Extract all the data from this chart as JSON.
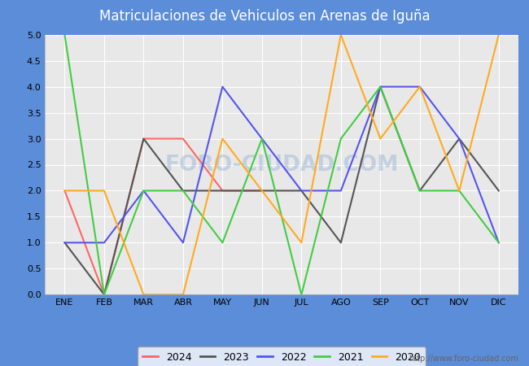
{
  "title": "Matriculaciones de Vehiculos en Arenas de Iguña",
  "title_color": "#ffffff",
  "header_bg": "#5b8dd9",
  "months": [
    "ENE",
    "FEB",
    "MAR",
    "ABR",
    "MAY",
    "JUN",
    "JUL",
    "AGO",
    "SEP",
    "OCT",
    "NOV",
    "DIC"
  ],
  "series_order": [
    "2024",
    "2023",
    "2022",
    "2021",
    "2020"
  ],
  "series": {
    "2024": {
      "color": "#ff6666",
      "data": [
        2,
        0,
        3,
        3,
        2,
        2,
        null,
        null,
        null,
        null,
        null,
        null
      ]
    },
    "2023": {
      "color": "#555555",
      "data": [
        1,
        0,
        3,
        2,
        2,
        2,
        2,
        1,
        4,
        2,
        3,
        2
      ]
    },
    "2022": {
      "color": "#5555ee",
      "data": [
        1,
        1,
        2,
        1,
        4,
        3,
        2,
        2,
        4,
        4,
        3,
        1
      ]
    },
    "2021": {
      "color": "#44cc44",
      "data": [
        5,
        0,
        2,
        2,
        1,
        3,
        0,
        3,
        4,
        2,
        2,
        1
      ]
    },
    "2020": {
      "color": "#ffaa22",
      "data": [
        2,
        2,
        0,
        0,
        3,
        2,
        1,
        5,
        3,
        4,
        2,
        5
      ]
    }
  },
  "ylim": [
    0,
    5.0
  ],
  "yticks": [
    0.0,
    0.5,
    1.0,
    1.5,
    2.0,
    2.5,
    3.0,
    3.5,
    4.0,
    4.5,
    5.0
  ],
  "outer_bg": "#5b8dd9",
  "inner_bg": "#e8e8e8",
  "plot_bg": "#e8e8e8",
  "grid_color": "#ffffff",
  "watermark_text": "FORO-CIUDAD.COM",
  "watermark_url": "http://www.foro-ciudad.com",
  "tick_fontsize": 8,
  "linewidth": 1.5
}
